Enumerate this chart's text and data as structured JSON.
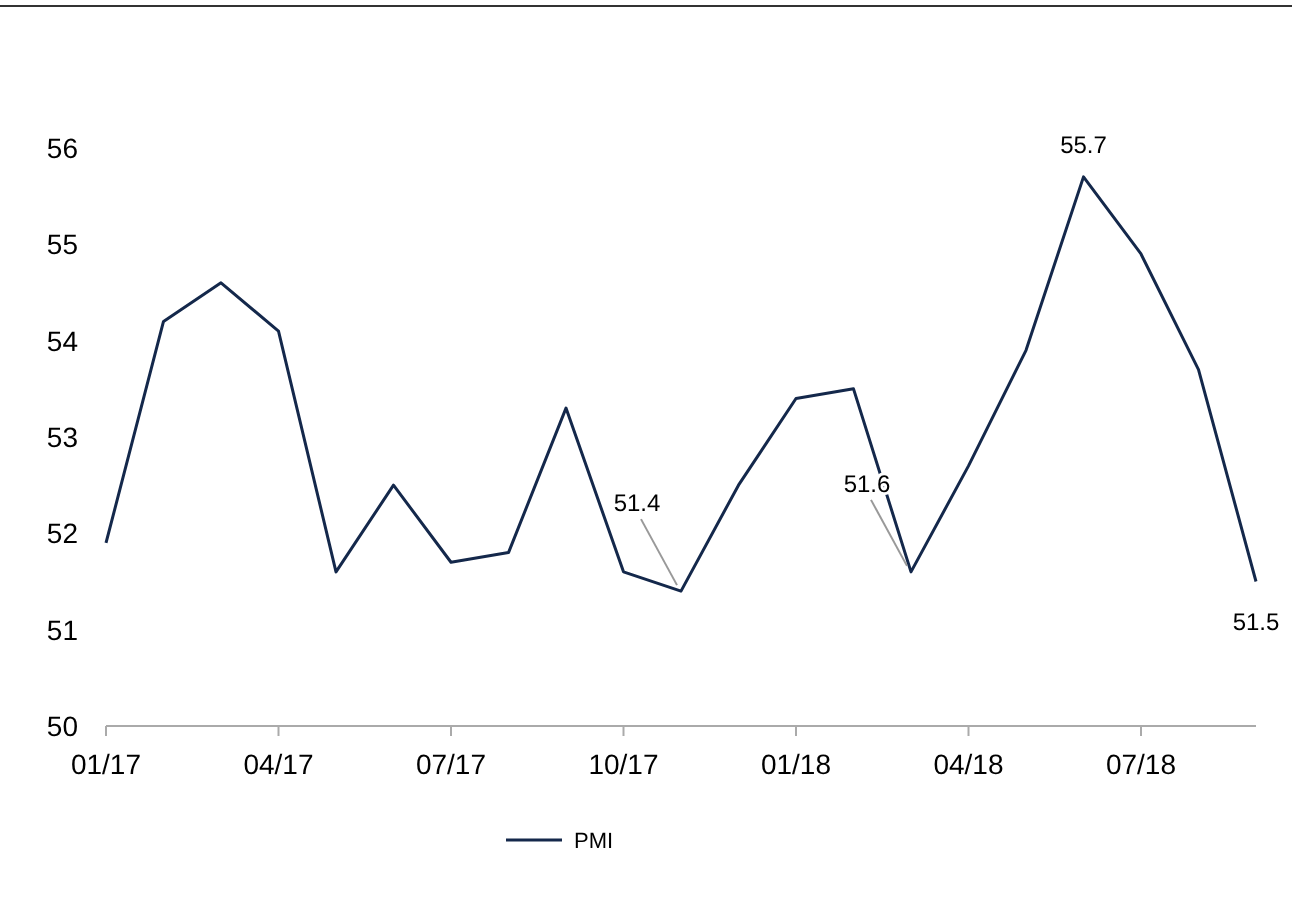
{
  "chart_data": {
    "type": "line",
    "categories": [
      "01/17",
      null,
      null,
      "04/17",
      null,
      null,
      "07/17",
      null,
      null,
      "10/17",
      null,
      null,
      "01/18",
      null,
      null,
      "04/18",
      null,
      null,
      "07/18",
      null,
      null
    ],
    "series": [
      {
        "name": "PMI",
        "color": "#14284b",
        "values": [
          51.9,
          54.2,
          54.6,
          54.1,
          51.6,
          52.5,
          51.7,
          51.8,
          53.3,
          51.6,
          51.4,
          52.5,
          53.4,
          53.5,
          51.6,
          52.7,
          53.9,
          55.7,
          54.9,
          53.7,
          51.5
        ],
        "value_labels": [
          null,
          null,
          null,
          null,
          null,
          null,
          null,
          null,
          null,
          null,
          "51.4",
          null,
          null,
          null,
          "51.6",
          null,
          null,
          "55.7",
          null,
          null,
          "51.5"
        ]
      }
    ],
    "ylim": [
      50,
      56
    ],
    "yticks": [
      50,
      51,
      52,
      53,
      54,
      55,
      56
    ],
    "grid": false,
    "legend": "bottom",
    "marker": "none",
    "line_style": "solid"
  }
}
